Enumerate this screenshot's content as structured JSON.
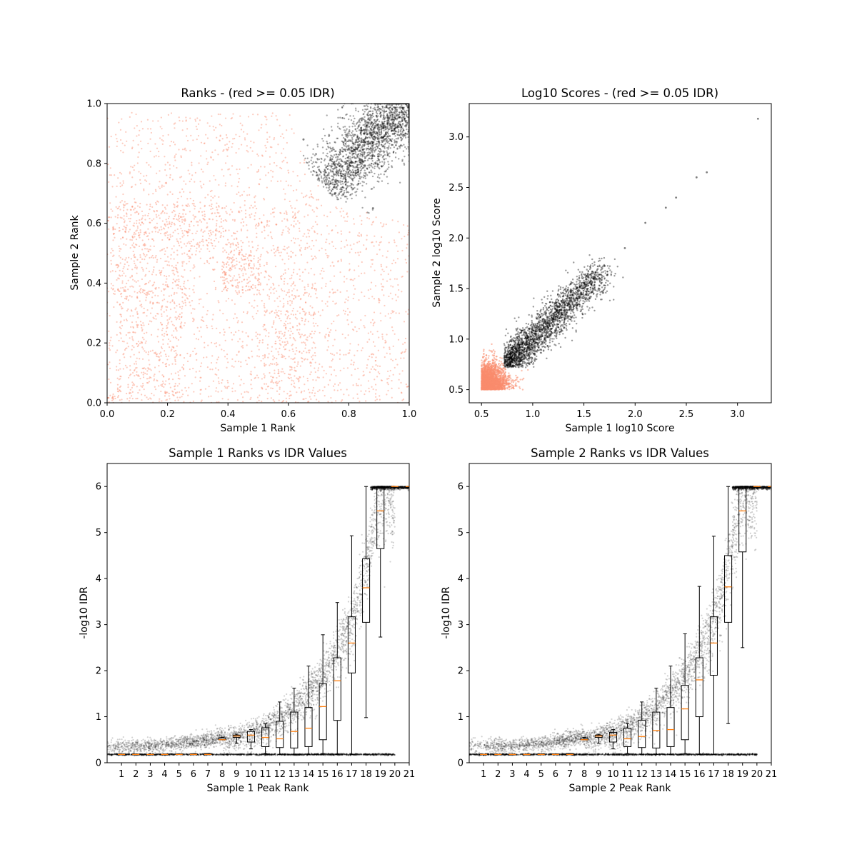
{
  "colors": {
    "fail": "#fa8c6e",
    "pass": "#000000",
    "median": "#ff7f0e",
    "box": "#000000"
  },
  "chart_data": [
    {
      "id": "ranks",
      "type": "scatter",
      "title": "Ranks - (red >= 0.05 IDR)",
      "xlabel": "Sample 1 Rank",
      "ylabel": "Sample 2 Rank",
      "xlim": [
        0.0,
        1.0
      ],
      "ylim": [
        0.0,
        1.0
      ],
      "xticks": [
        0.0,
        0.2,
        0.4,
        0.6,
        0.8,
        1.0
      ],
      "yticks": [
        0.0,
        0.2,
        0.4,
        0.6,
        0.8,
        1.0
      ],
      "xtick_labels": [
        "0.0",
        "0.2",
        "0.4",
        "0.6",
        "0.8",
        "1.0"
      ],
      "ytick_labels": [
        "0.0",
        "0.2",
        "0.4",
        "0.6",
        "0.8",
        "1.0"
      ],
      "series": [
        {
          "color_key": "fail",
          "blocks": [
            {
              "x": [
                0.0,
                1.0
              ],
              "y": [
                0.0,
                0.66
              ],
              "density": 0.9
            },
            {
              "x": [
                0.0,
                0.7
              ],
              "y": [
                0.5,
                0.97
              ],
              "density": 0.7
            },
            {
              "x": [
                0.38,
                0.51
              ],
              "y": [
                0.37,
                0.51
              ],
              "density": 3.0
            },
            {
              "x": [
                0.0,
                0.03
              ],
              "y": [
                0.0,
                0.03
              ],
              "density": 6.0
            },
            {
              "x": [
                0.03,
                0.26
              ],
              "y": [
                0.0,
                0.5
              ],
              "density": 1.2
            },
            {
              "x": [
                0.52,
                0.69
              ],
              "y": [
                0.03,
                0.4
              ],
              "density": 1.2
            },
            {
              "x": [
                0.03,
                0.38
              ],
              "y": [
                0.51,
                0.68
              ],
              "density": 1.0
            }
          ]
        },
        {
          "color_key": "pass",
          "points": [
            [
              0.75,
              0.8
            ],
            [
              0.8,
              0.85
            ],
            [
              0.85,
              0.9
            ],
            [
              0.9,
              0.92
            ],
            [
              0.95,
              0.97
            ],
            [
              1.0,
              1.0
            ],
            [
              0.7,
              0.75
            ],
            [
              0.65,
              0.88
            ],
            [
              0.88,
              0.65
            ]
          ]
        }
      ]
    },
    {
      "id": "scores",
      "type": "scatter",
      "title": "Log10 Scores - (red >= 0.05 IDR)",
      "xlabel": "Sample 1 log10 Score",
      "ylabel": "Sample 2 log10 Score",
      "xlim": [
        0.38,
        3.33
      ],
      "ylim": [
        0.37,
        3.33
      ],
      "xticks": [
        0.5,
        1.0,
        1.5,
        2.0,
        2.5,
        3.0
      ],
      "yticks": [
        0.5,
        1.0,
        1.5,
        2.0,
        2.5,
        3.0
      ],
      "xtick_labels": [
        "0.5",
        "1.0",
        "1.5",
        "2.0",
        "2.5",
        "3.0"
      ],
      "ytick_labels": [
        "0.5",
        "1.0",
        "1.5",
        "2.0",
        "2.5",
        "3.0"
      ],
      "series": [
        {
          "color_key": "fail",
          "points": [
            [
              0.5,
              0.5
            ],
            [
              0.6,
              0.6
            ],
            [
              0.7,
              0.55
            ],
            [
              0.8,
              0.52
            ],
            [
              0.55,
              0.8
            ],
            [
              0.6,
              0.95
            ],
            [
              0.9,
              0.6
            ]
          ]
        },
        {
          "color_key": "pass",
          "points": [
            [
              0.75,
              0.8
            ],
            [
              1.0,
              1.0
            ],
            [
              1.2,
              1.2
            ],
            [
              1.4,
              1.4
            ],
            [
              1.6,
              1.6
            ],
            [
              1.9,
              1.9
            ],
            [
              2.1,
              2.15
            ],
            [
              2.3,
              2.3
            ],
            [
              2.4,
              2.4
            ],
            [
              2.6,
              2.6
            ],
            [
              2.7,
              2.65
            ],
            [
              3.2,
              3.18
            ]
          ]
        }
      ]
    },
    {
      "id": "idr1",
      "type": "box",
      "title": "Sample 1 Ranks vs IDR Values",
      "xlabel": "Sample 1 Peak Rank",
      "ylabel": "-log10 IDR",
      "xlim": [
        0.0,
        21.0
      ],
      "ylim": [
        0.0,
        6.5
      ],
      "xtick_labels": [
        "1",
        "2",
        "3",
        "4",
        "5",
        "6",
        "7",
        "8",
        "9",
        "10",
        "11",
        "12",
        "13",
        "14",
        "15",
        "16",
        "17",
        "18",
        "19",
        "20",
        "21"
      ],
      "yticks": [
        0,
        1,
        2,
        3,
        4,
        5,
        6
      ],
      "ytick_labels": [
        "0",
        "1",
        "2",
        "3",
        "4",
        "5",
        "6"
      ],
      "boxes": [
        {
          "median": 0.18,
          "q1": 0.18,
          "q3": 0.18,
          "whislo": 0.18,
          "whishi": 0.18
        },
        {
          "median": 0.18,
          "q1": 0.18,
          "q3": 0.18,
          "whislo": 0.18,
          "whishi": 0.18
        },
        {
          "median": 0.18,
          "q1": 0.18,
          "q3": 0.18,
          "whislo": 0.18,
          "whishi": 0.18
        },
        {
          "median": 0.18,
          "q1": 0.18,
          "q3": 0.18,
          "whislo": 0.18,
          "whishi": 0.18
        },
        {
          "median": 0.18,
          "q1": 0.18,
          "q3": 0.19,
          "whislo": 0.18,
          "whishi": 0.19
        },
        {
          "median": 0.18,
          "q1": 0.18,
          "q3": 0.19,
          "whislo": 0.18,
          "whishi": 0.19
        },
        {
          "median": 0.18,
          "q1": 0.18,
          "q3": 0.2,
          "whislo": 0.18,
          "whishi": 0.2
        },
        {
          "median": 0.5,
          "q1": 0.5,
          "q3": 0.54,
          "whislo": 0.5,
          "whishi": 0.55
        },
        {
          "median": 0.58,
          "q1": 0.55,
          "q3": 0.6,
          "whislo": 0.42,
          "whishi": 0.62
        },
        {
          "median": 0.6,
          "q1": 0.45,
          "q3": 0.68,
          "whislo": 0.3,
          "whishi": 0.72
        },
        {
          "median": 0.55,
          "q1": 0.35,
          "q3": 0.76,
          "whislo": 0.2,
          "whishi": 0.85
        },
        {
          "median": 0.52,
          "q1": 0.33,
          "q3": 0.9,
          "whislo": 0.18,
          "whishi": 1.32
        },
        {
          "median": 0.68,
          "q1": 0.32,
          "q3": 1.1,
          "whislo": 0.18,
          "whishi": 1.62
        },
        {
          "median": 0.75,
          "q1": 0.35,
          "q3": 1.2,
          "whislo": 0.18,
          "whishi": 2.1
        },
        {
          "median": 1.22,
          "q1": 0.5,
          "q3": 1.72,
          "whislo": 0.2,
          "whishi": 2.78
        },
        {
          "median": 1.78,
          "q1": 0.92,
          "q3": 2.28,
          "whislo": 0.18,
          "whishi": 3.48
        },
        {
          "median": 2.6,
          "q1": 1.95,
          "q3": 3.17,
          "whislo": 0.18,
          "whishi": 4.93
        },
        {
          "median": 3.8,
          "q1": 3.05,
          "q3": 4.43,
          "whislo": 0.98,
          "whishi": 6.0
        },
        {
          "median": 5.47,
          "q1": 4.65,
          "q3": 6.0,
          "whislo": 2.73,
          "whishi": 6.0
        },
        {
          "median": 6.0,
          "q1": 6.0,
          "q3": 6.0,
          "whislo": 6.0,
          "whishi": 6.0
        },
        {
          "median": 6.0,
          "q1": 6.0,
          "q3": 6.0,
          "whislo": 6.0,
          "whishi": 6.0
        }
      ],
      "trend": [
        [
          0.0,
          0.35
        ],
        [
          3.0,
          0.37
        ],
        [
          5.0,
          0.42
        ],
        [
          7.0,
          0.5
        ],
        [
          9.0,
          0.68
        ],
        [
          11.0,
          0.9
        ],
        [
          12.0,
          1.1
        ],
        [
          13.0,
          1.35
        ],
        [
          14.0,
          1.7
        ],
        [
          15.0,
          2.1
        ],
        [
          16.0,
          2.6
        ],
        [
          17.0,
          3.3
        ],
        [
          17.5,
          3.8
        ],
        [
          18.0,
          4.5
        ],
        [
          18.5,
          5.3
        ],
        [
          18.8,
          6.0
        ],
        [
          20.0,
          6.0
        ]
      ]
    },
    {
      "id": "idr2",
      "type": "box",
      "title": "Sample 2 Ranks vs IDR Values",
      "xlabel": "Sample 2 Peak Rank",
      "ylabel": "-log10 IDR",
      "xlim": [
        0.0,
        21.0
      ],
      "ylim": [
        0.0,
        6.5
      ],
      "xtick_labels": [
        "1",
        "2",
        "3",
        "4",
        "5",
        "6",
        "7",
        "8",
        "9",
        "10",
        "11",
        "12",
        "13",
        "14",
        "15",
        "16",
        "17",
        "18",
        "19",
        "20",
        "21"
      ],
      "yticks": [
        0,
        1,
        2,
        3,
        4,
        5,
        6
      ],
      "ytick_labels": [
        "0",
        "1",
        "2",
        "3",
        "4",
        "5",
        "6"
      ],
      "boxes": [
        {
          "median": 0.18,
          "q1": 0.18,
          "q3": 0.18,
          "whislo": 0.18,
          "whishi": 0.18
        },
        {
          "median": 0.18,
          "q1": 0.18,
          "q3": 0.18,
          "whislo": 0.18,
          "whishi": 0.18
        },
        {
          "median": 0.18,
          "q1": 0.18,
          "q3": 0.18,
          "whislo": 0.18,
          "whishi": 0.18
        },
        {
          "median": 0.18,
          "q1": 0.18,
          "q3": 0.18,
          "whislo": 0.18,
          "whishi": 0.18
        },
        {
          "median": 0.18,
          "q1": 0.18,
          "q3": 0.19,
          "whislo": 0.18,
          "whishi": 0.19
        },
        {
          "median": 0.18,
          "q1": 0.18,
          "q3": 0.19,
          "whislo": 0.18,
          "whishi": 0.19
        },
        {
          "median": 0.18,
          "q1": 0.18,
          "q3": 0.2,
          "whislo": 0.18,
          "whishi": 0.2
        },
        {
          "median": 0.5,
          "q1": 0.5,
          "q3": 0.54,
          "whislo": 0.5,
          "whishi": 0.55
        },
        {
          "median": 0.58,
          "q1": 0.55,
          "q3": 0.6,
          "whislo": 0.42,
          "whishi": 0.62
        },
        {
          "median": 0.6,
          "q1": 0.45,
          "q3": 0.66,
          "whislo": 0.3,
          "whishi": 0.72
        },
        {
          "median": 0.52,
          "q1": 0.35,
          "q3": 0.75,
          "whislo": 0.2,
          "whishi": 0.85
        },
        {
          "median": 0.57,
          "q1": 0.33,
          "q3": 0.92,
          "whislo": 0.18,
          "whishi": 1.32
        },
        {
          "median": 0.7,
          "q1": 0.32,
          "q3": 1.1,
          "whislo": 0.18,
          "whishi": 1.62
        },
        {
          "median": 0.72,
          "q1": 0.35,
          "q3": 1.2,
          "whislo": 0.18,
          "whishi": 2.1
        },
        {
          "median": 1.17,
          "q1": 0.5,
          "q3": 1.68,
          "whislo": 0.2,
          "whishi": 2.8
        },
        {
          "median": 1.8,
          "q1": 1.0,
          "q3": 2.28,
          "whislo": 0.18,
          "whishi": 3.83
        },
        {
          "median": 2.6,
          "q1": 1.9,
          "q3": 3.17,
          "whislo": 0.18,
          "whishi": 4.92
        },
        {
          "median": 3.82,
          "q1": 3.05,
          "q3": 4.5,
          "whislo": 0.85,
          "whishi": 6.0
        },
        {
          "median": 5.47,
          "q1": 4.58,
          "q3": 6.0,
          "whislo": 2.5,
          "whishi": 6.0
        },
        {
          "median": 6.0,
          "q1": 6.0,
          "q3": 6.0,
          "whislo": 6.0,
          "whishi": 6.0
        },
        {
          "median": 6.0,
          "q1": 6.0,
          "q3": 6.0,
          "whislo": 6.0,
          "whishi": 6.0
        }
      ],
      "trend": [
        [
          0.0,
          0.35
        ],
        [
          3.0,
          0.37
        ],
        [
          5.0,
          0.42
        ],
        [
          7.0,
          0.5
        ],
        [
          9.0,
          0.68
        ],
        [
          11.0,
          0.9
        ],
        [
          12.0,
          1.1
        ],
        [
          13.0,
          1.35
        ],
        [
          14.0,
          1.7
        ],
        [
          15.0,
          2.1
        ],
        [
          16.0,
          2.6
        ],
        [
          17.0,
          3.3
        ],
        [
          17.5,
          3.8
        ],
        [
          18.0,
          4.5
        ],
        [
          18.5,
          5.3
        ],
        [
          18.8,
          6.0
        ],
        [
          20.0,
          6.0
        ]
      ]
    }
  ]
}
